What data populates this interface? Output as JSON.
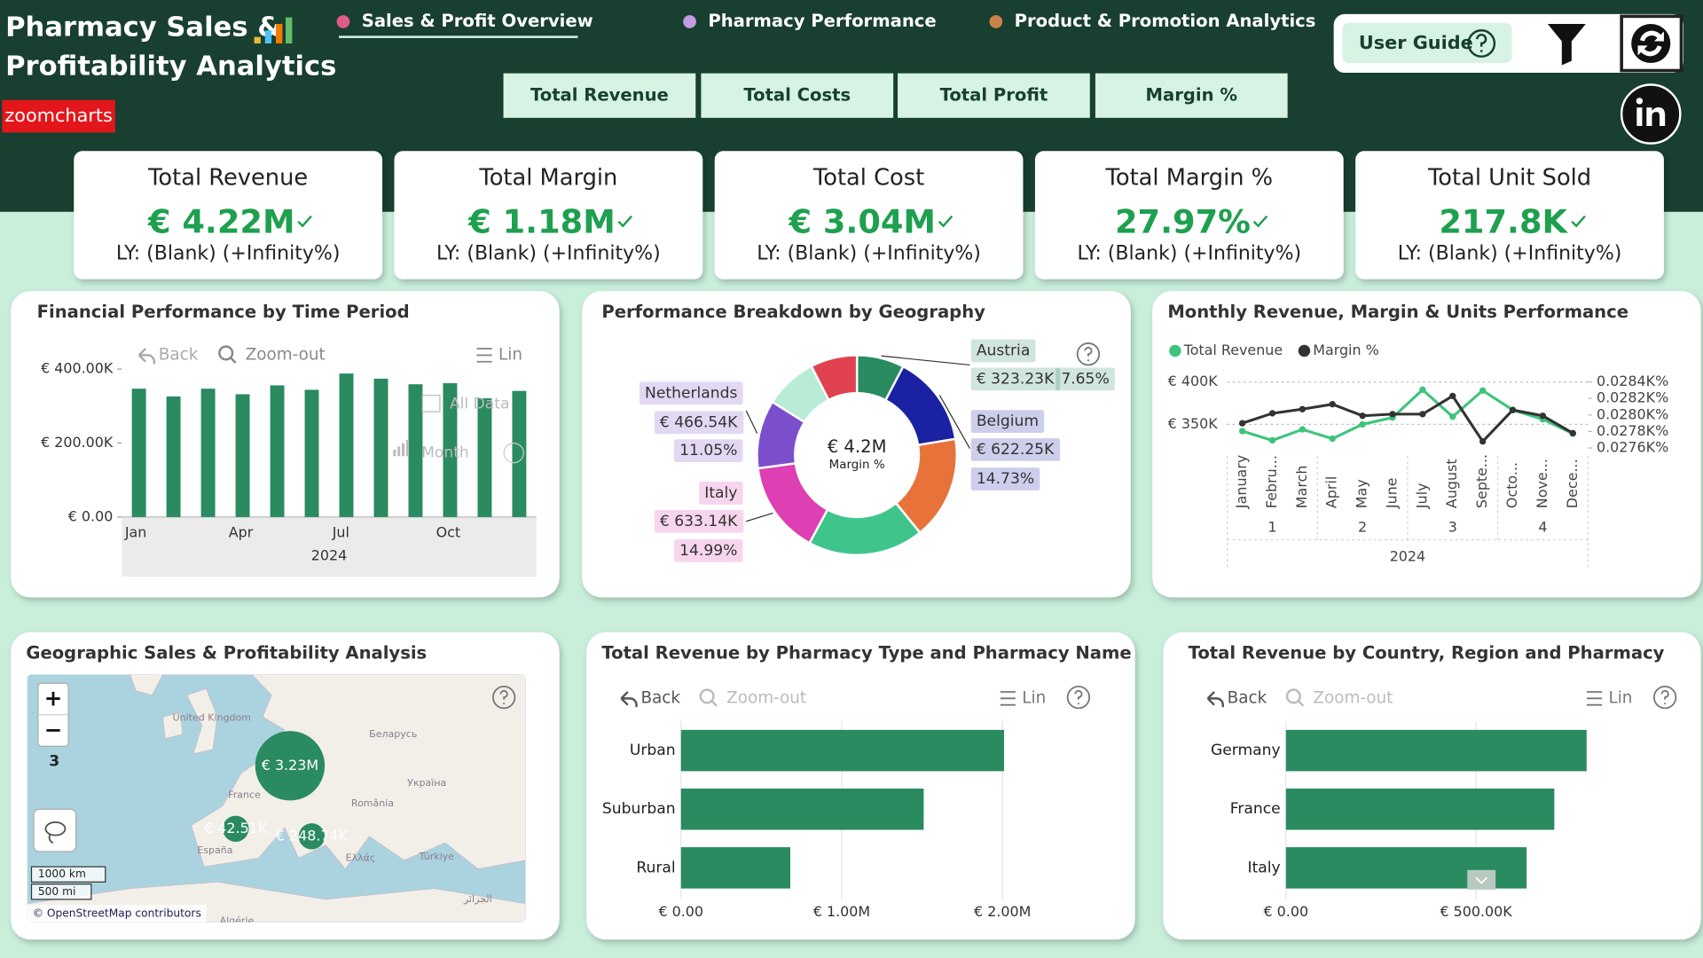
{
  "header": {
    "title_lines": [
      "Pharmacy Sales &",
      "Profitability Analytics"
    ],
    "logo": "zoomcharts",
    "tabs": [
      "Sales & Profit Overview",
      "Pharmacy Performance",
      "Product & Promotion Analytics"
    ],
    "measure_buttons": [
      "Total Revenue",
      "Total Costs",
      "Total Profit",
      "Margin %"
    ],
    "user_guide": "User Guide"
  },
  "kpis": [
    {
      "title": "Total Revenue",
      "value": "€ 4.22M",
      "comparison": "LY: (Blank) (+Infinity%)"
    },
    {
      "title": "Total Margin",
      "value": "€ 1.18M",
      "comparison": "LY: (Blank) (+Infinity%)"
    },
    {
      "title": "Total Cost",
      "value": "€ 3.04M",
      "comparison": "LY: (Blank) (+Infinity%)"
    },
    {
      "title": "Total Margin %",
      "value": "27.97%",
      "comparison": "LY: (Blank) (+Infinity%)"
    },
    {
      "title": "Total Unit Sold",
      "value": "217.8K",
      "comparison": "LY: (Blank) (+Infinity%)"
    }
  ],
  "chart_data": [
    {
      "type": "bar",
      "title": "Financial Performance by Time Period",
      "toolbar": [
        "Back",
        "Zoom-out",
        "Lin"
      ],
      "overlay_labels": [
        "All Data",
        "Month"
      ],
      "categories": [
        "Jan",
        null,
        null,
        "Apr",
        null,
        null,
        "Jul",
        null,
        null,
        "Oct",
        null,
        null
      ],
      "x_group_label": 2024,
      "values": [
        347000,
        326000,
        347000,
        332000,
        356000,
        344000,
        388000,
        374000,
        359000,
        362000,
        321000,
        341000
      ],
      "color": "#2a8a60",
      "ylim": [
        0,
        420000
      ],
      "yticks": [
        {
          "value": 0,
          "label": "€ 0.00"
        },
        {
          "value": 200000,
          "label": "€ 200.00K"
        },
        {
          "value": 400000,
          "label": "€ 400.00K"
        }
      ]
    },
    {
      "type": "donut",
      "title": "Performance Breakdown by Geography",
      "center_value": "€ 4.2M",
      "center_label": "Margin %",
      "categories": [
        "Austria",
        "Belgium",
        null,
        null,
        "Italy",
        "Netherlands",
        null,
        null
      ],
      "values": [
        323230,
        622250,
        706000,
        791000,
        633140,
        466540,
        360000,
        317840
      ],
      "value_labels": [
        "€ 323.23K",
        "€ 622.25K",
        null,
        null,
        "€ 633.14K",
        "€ 466.54K",
        null,
        null
      ],
      "share_labels": [
        "7.65%",
        "14.73%",
        null,
        null,
        "14.99%",
        "11.05%",
        null,
        null
      ],
      "colors": [
        "#2a8a60",
        "#1a22a3",
        "#e8733a",
        "#3fc58c",
        "#de3fb2",
        "#7b4fcc",
        "#b8ecd6",
        "#e0434f"
      ]
    },
    {
      "type": "line",
      "title": "Monthly Revenue, Margin & Units Performance",
      "categories": [
        "January",
        "Febru...",
        "March",
        "April",
        "May",
        "June",
        "July",
        "August",
        "Septe...",
        "Octo...",
        "Nove...",
        "Dece..."
      ],
      "quarters": [
        1,
        2,
        3,
        4
      ],
      "x_group_label": 2024,
      "series": [
        {
          "name": "Total Revenue",
          "color": "#3cc47c",
          "values": [
            342000,
            331000,
            344000,
            333000,
            350000,
            358000,
            391000,
            359000,
            390000,
            367000,
            356000,
            339000
          ]
        },
        {
          "name": "Margin %",
          "color": "#333333",
          "axis": "y2",
          "values": [
            27.9,
            28.02,
            28.07,
            28.13,
            27.99,
            28.01,
            28.01,
            28.23,
            27.68,
            28.06,
            27.99,
            27.78
          ]
        }
      ],
      "ylim": [
        320000,
        410000
      ],
      "yticks": [
        {
          "value": 350000,
          "label": "€ 350K"
        },
        {
          "value": 400000,
          "label": "€ 400K"
        }
      ],
      "y2lim": [
        27.58,
        28.5
      ],
      "y2ticks": [
        {
          "value": 27.6,
          "label": "0.0276K%"
        },
        {
          "value": 27.8,
          "label": "0.0278K%"
        },
        {
          "value": 28.0,
          "label": "0.0280K%"
        },
        {
          "value": 28.2,
          "label": "0.0282K%"
        },
        {
          "value": 28.4,
          "label": "0.0284K%"
        }
      ]
    },
    {
      "type": "map",
      "title": "Geographic Sales & Profitability Analysis",
      "values": [
        3230000,
        42510,
        248740
      ],
      "value_labels": [
        "€ 3.23M",
        "€ 42.51K",
        "€ 248.74K"
      ],
      "color": "#2a8a60",
      "place_labels": [
        "United Kingdom",
        "Беларусь",
        "Україна",
        "France",
        "România",
        "España",
        "Ελλάς",
        "Türkiye",
        "الجزائر",
        "Algérie"
      ],
      "zoom_buttons": [
        "+",
        "−"
      ],
      "zoom_level": 3,
      "scale_labels": [
        "1000 km",
        "500 mi"
      ],
      "attribution": "© OpenStreetMap contributors"
    },
    {
      "type": "hbar",
      "title": "Total Revenue by Pharmacy Type and Pharmacy Name",
      "toolbar": [
        "Back",
        "Zoom-out",
        "Lin"
      ],
      "categories": [
        "Urban",
        "Suburban",
        "Rural"
      ],
      "values": [
        2010000,
        1510000,
        680000
      ],
      "color": "#2a8a60",
      "xlim": [
        0,
        2500000
      ],
      "xticks": [
        {
          "value": 0,
          "label": "€ 0.00"
        },
        {
          "value": 1000000,
          "label": "€ 1.00M"
        },
        {
          "value": 2000000,
          "label": "€ 2.00M"
        }
      ]
    },
    {
      "type": "hbar",
      "title": "Total Revenue by Country, Region and Pharmacy",
      "toolbar": [
        "Back",
        "Zoom-out",
        "Lin"
      ],
      "categories": [
        "Germany",
        "France",
        "Italy"
      ],
      "values": [
        791000,
        706000,
        633140
      ],
      "color": "#2a8a60",
      "xlim": [
        0,
        900000
      ],
      "xticks": [
        {
          "value": 0,
          "label": "€ 0.00"
        },
        {
          "value": 500000,
          "label": "€ 500.00K"
        }
      ]
    }
  ]
}
